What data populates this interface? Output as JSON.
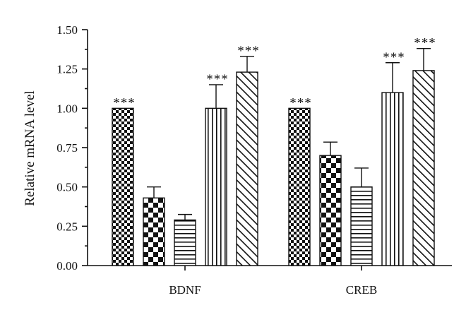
{
  "chart_data": {
    "type": "bar",
    "title": "",
    "xlabel": "",
    "ylabel": "Relative mRNA level",
    "ylim": [
      0,
      1.5
    ],
    "yticks": [
      "0.00",
      "0.25",
      "0.50",
      "0.75",
      "1.00",
      "1.25",
      "1.50"
    ],
    "grid": false,
    "legend": "none",
    "categories": [
      "BDNF",
      "CREB"
    ],
    "series": [
      {
        "pattern": "checker-fine",
        "values": [
          1.0,
          1.0
        ],
        "errors": [
          0.0,
          0.0
        ],
        "annotations": [
          "***",
          "***"
        ]
      },
      {
        "pattern": "checker-coarse",
        "values": [
          0.43,
          0.7
        ],
        "errors": [
          0.07,
          0.085
        ],
        "annotations": [
          "",
          ""
        ]
      },
      {
        "pattern": "horizontal-lines",
        "values": [
          0.29,
          0.5
        ],
        "errors": [
          0.035,
          0.12
        ],
        "annotations": [
          "",
          ""
        ]
      },
      {
        "pattern": "vertical-lines",
        "values": [
          1.0,
          1.1
        ],
        "errors": [
          0.15,
          0.19
        ],
        "annotations": [
          "***",
          "***"
        ]
      },
      {
        "pattern": "diagonal-lines",
        "values": [
          1.23,
          1.24
        ],
        "errors": [
          0.1,
          0.14
        ],
        "annotations": [
          "***",
          "***"
        ]
      }
    ],
    "colors": {
      "ink": "#111111",
      "background": "#ffffff"
    }
  }
}
